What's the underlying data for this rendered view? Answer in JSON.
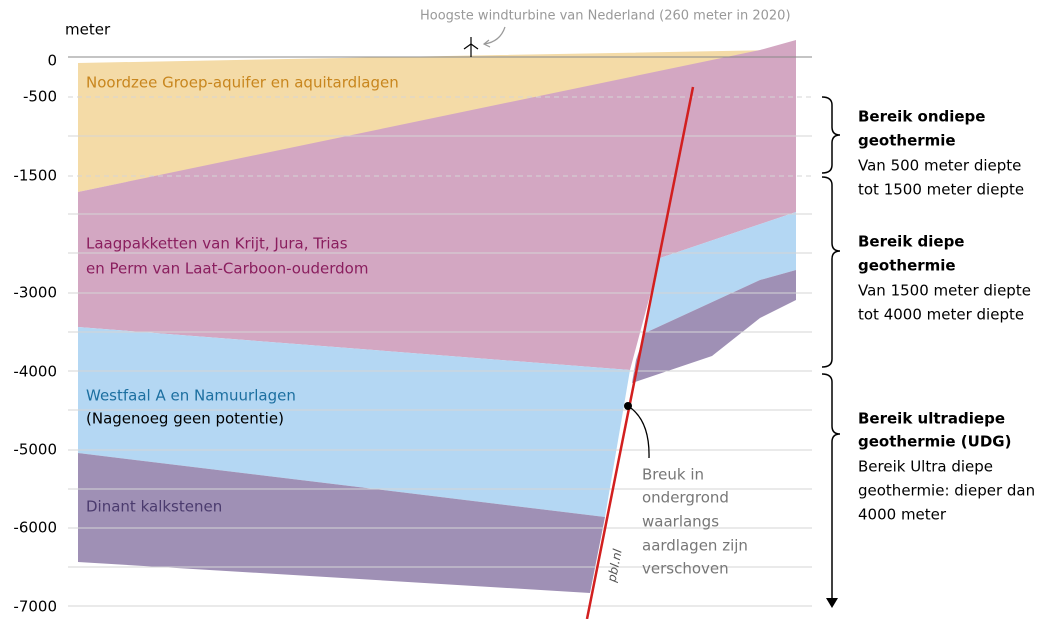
{
  "axis": {
    "unit": "meter",
    "ticks": [
      "0",
      "-500",
      "-1500",
      "-3000",
      "-4000",
      "-5000",
      "-6000",
      "-7000"
    ]
  },
  "turbine_caption": "Hoogste windturbine van Nederland (260 meter in 2020)",
  "layers": [
    {
      "lines": [
        "Noordzee Groep-aquifer en aquitardlagen"
      ]
    },
    {
      "lines": [
        "Laagpakketten van Krijt, Jura, Trias",
        "en Perm van Laat-Carboon-ouderdom"
      ]
    },
    {
      "lines": [
        "Westfaal A en Namuurlagen",
        "(Nagenoeg geen potentie)"
      ]
    },
    {
      "lines": [
        "Dinant kalkstenen"
      ]
    }
  ],
  "fault": {
    "lines": [
      "Breuk in",
      "ondergrond",
      "waarlangs",
      "aardlagen zijn",
      "verschoven"
    ]
  },
  "source": "pbl.nl",
  "zones": [
    {
      "title": [
        "Bereik ondiepe",
        "geothermie"
      ],
      "desc": [
        "Van 500 meter diepte",
        "tot 1500 meter diepte"
      ]
    },
    {
      "title": [
        "Bereik diepe",
        "geothermie"
      ],
      "desc": [
        "Van 1500 meter diepte",
        "tot 4000 meter diepte"
      ]
    },
    {
      "title": [
        "Bereik ultradiepe",
        "geothermie (UDG)"
      ],
      "desc": [
        "Bereik Ultra diepe",
        "geothermie: dieper dan",
        "4000 meter"
      ]
    }
  ]
}
